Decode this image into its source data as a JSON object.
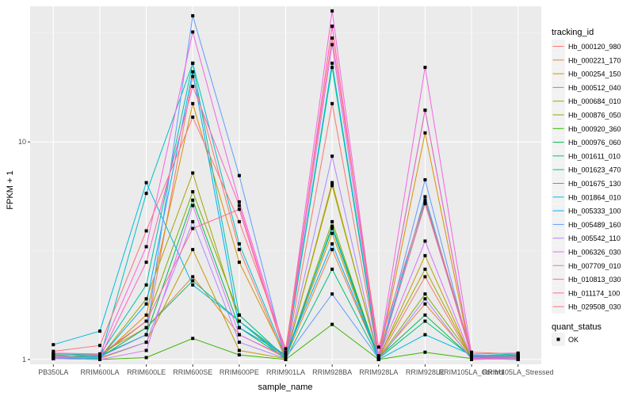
{
  "chart_data": {
    "type": "line",
    "xlabel": "sample_name",
    "ylabel": "FPKM + 1",
    "y_scale": "log10",
    "ylim": [
      0.95,
      42
    ],
    "y_ticks": [
      1,
      10
    ],
    "y_tick_labels": [
      "1",
      "10"
    ],
    "grid": true,
    "legend_position": "right",
    "categories": [
      "PB350LA",
      "RRIM600LA",
      "RRIM600LE",
      "RRIM600SE",
      "RRIM600PE",
      "RRIM901LA",
      "RRIM928BA",
      "RRIM928LA",
      "RRIM928LE",
      "RRIM105LA_Control",
      "RRIM105LA_Stressed"
    ],
    "category_labels": [
      "PB350LA",
      "RRIM600LA",
      "RRIM600LE",
      "RRIM600SE",
      "RRIM600PE",
      "RRIM901LA",
      "RRIM928BA",
      "RRIM928LA",
      "RRIM928LE",
      "RRIM105LA_Control",
      "RRIM105LA_Stressed"
    ],
    "legend_title": "tracking_id",
    "series": [
      {
        "name": "Hb_000120_980",
        "color": "#F8766D",
        "values": [
          1.02,
          1.03,
          1.3,
          20,
          3.2,
          1.0,
          15,
          1.01,
          2.4,
          1.01,
          1.02
        ]
      },
      {
        "name": "Hb_000221_170",
        "color": "#EA8331",
        "values": [
          1.03,
          1.06,
          1.4,
          2.4,
          1.3,
          1.02,
          3.2,
          1.02,
          1.8,
          1.02,
          1.03
        ]
      },
      {
        "name": "Hb_000254_150",
        "color": "#D89000",
        "values": [
          1.01,
          1.02,
          1.6,
          15,
          2.8,
          1.03,
          3.8,
          1.0,
          11,
          1.0,
          1.01
        ]
      },
      {
        "name": "Hb_000512_040",
        "color": "#C09B00",
        "values": [
          1.04,
          1.01,
          1.2,
          3.2,
          1.1,
          1.01,
          6.5,
          1.01,
          3.0,
          1.01,
          1.0
        ]
      },
      {
        "name": "Hb_000684_010",
        "color": "#A3A500",
        "values": [
          1.02,
          1.02,
          1.9,
          7.2,
          1.5,
          1.02,
          6.3,
          1.03,
          2.6,
          1.02,
          1.02
        ]
      },
      {
        "name": "Hb_000876_050",
        "color": "#7CAE00",
        "values": [
          1.05,
          1.03,
          1.5,
          5.9,
          1.6,
          1.02,
          4.3,
          1.01,
          2.0,
          1.03,
          1.04
        ]
      },
      {
        "name": "Hb_000920_360",
        "color": "#39B600",
        "values": [
          1.01,
          1.0,
          1.02,
          1.25,
          1.05,
          1.0,
          1.45,
          1.0,
          1.08,
          1.01,
          1.01
        ]
      },
      {
        "name": "Hb_000976_060",
        "color": "#00BB4E",
        "values": [
          1.02,
          1.04,
          1.3,
          5.4,
          1.4,
          1.01,
          4.1,
          1.02,
          1.6,
          1.02,
          1.03
        ]
      },
      {
        "name": "Hb_001611_010",
        "color": "#00BF7D",
        "values": [
          1.03,
          1.02,
          1.4,
          2.3,
          1.5,
          1.0,
          2.6,
          1.01,
          1.5,
          1.03,
          1.05
        ]
      },
      {
        "name": "Hb_001623_470",
        "color": "#00C1A3",
        "values": [
          1.06,
          1.05,
          2.2,
          23,
          1.6,
          1.02,
          22,
          1.0,
          5.3,
          1.04,
          1.06
        ]
      },
      {
        "name": "Hb_001675_130",
        "color": "#00BFC4",
        "values": [
          1.02,
          1.01,
          5.8,
          23,
          3.4,
          1.03,
          23,
          1.02,
          14,
          1.02,
          1.03
        ]
      },
      {
        "name": "Hb_001864_010",
        "color": "#00B9E3",
        "values": [
          1.17,
          1.35,
          6.5,
          2.2,
          1.5,
          1.04,
          4.0,
          1.0,
          1.3,
          1.05,
          1.04
        ]
      },
      {
        "name": "Hb_005333_100",
        "color": "#00ADFA",
        "values": [
          1.01,
          1.02,
          1.8,
          21,
          1.4,
          1.05,
          3.4,
          1.02,
          5.6,
          1.03,
          1.02
        ]
      },
      {
        "name": "Hb_005489_160",
        "color": "#619CFF",
        "values": [
          1.02,
          1.03,
          1.3,
          38,
          7.0,
          1.02,
          2.0,
          1.01,
          6.7,
          1.01,
          1.0
        ]
      },
      {
        "name": "Hb_005542_110",
        "color": "#AE87FF",
        "values": [
          1.03,
          1.02,
          1.2,
          4.3,
          1.2,
          1.01,
          8.6,
          1.0,
          1.9,
          1.0,
          1.01
        ]
      },
      {
        "name": "Hb_006326_030",
        "color": "#DB72FB",
        "values": [
          1.01,
          1.0,
          1.1,
          5.1,
          1.3,
          1.03,
          28,
          1.03,
          3.5,
          1.02,
          1.0
        ]
      },
      {
        "name": "Hb_007709_010",
        "color": "#F564E3",
        "values": [
          1.07,
          1.06,
          3.3,
          32,
          5.3,
          1.08,
          40,
          1.04,
          22,
          1.06,
          1.07
        ]
      },
      {
        "name": "Hb_010813_030",
        "color": "#FF61C3",
        "values": [
          1.02,
          1.02,
          2.8,
          18,
          5.1,
          1.03,
          34,
          1.01,
          14,
          1.01,
          1.02
        ]
      },
      {
        "name": "Hb_011174_100",
        "color": "#FF689F",
        "values": [
          1.04,
          1.05,
          1.5,
          4.0,
          4.9,
          1.02,
          34,
          1.02,
          5.2,
          1.04,
          1.03
        ]
      },
      {
        "name": "Hb_029508_030",
        "color": "#FC717F",
        "values": [
          1.09,
          1.16,
          3.9,
          13,
          4.3,
          1.12,
          30,
          1.14,
          5.4,
          1.08,
          1.06
        ]
      }
    ],
    "shape_legend": {
      "title": "quant_status",
      "entries": [
        {
          "label": "OK",
          "shape": "square"
        }
      ]
    }
  }
}
